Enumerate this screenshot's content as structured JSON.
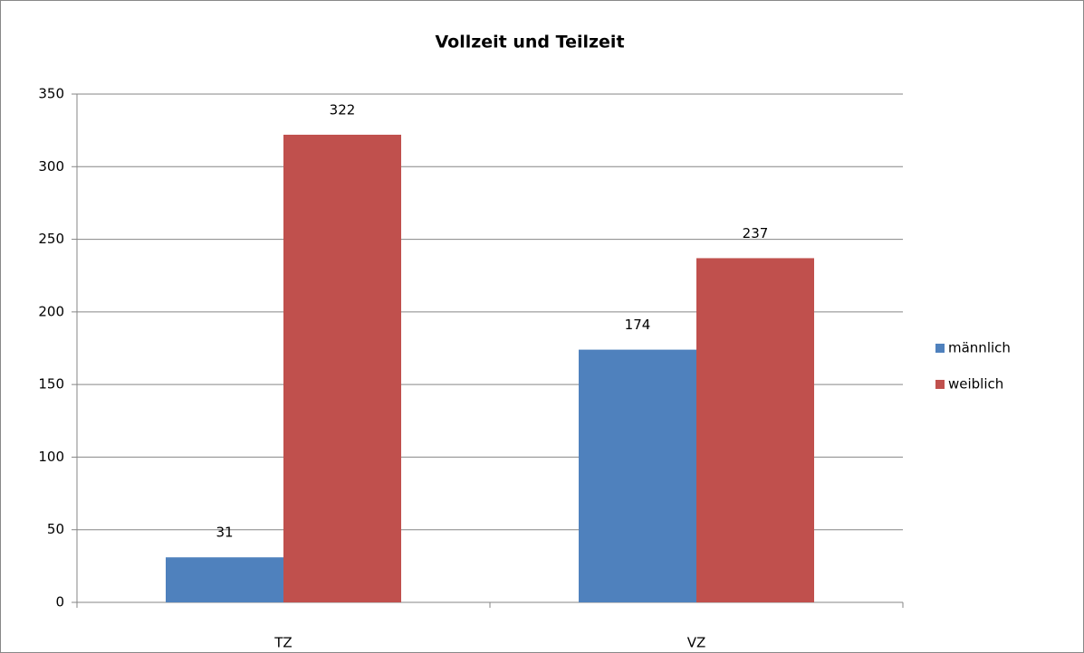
{
  "chart_data": {
    "type": "bar",
    "title": "Vollzeit und Teilzeit",
    "categories": [
      "TZ",
      "VZ"
    ],
    "series": [
      {
        "name": "männlich",
        "color": "#4f81bd",
        "values": [
          31,
          174
        ]
      },
      {
        "name": "weiblich",
        "color": "#c0504d",
        "values": [
          322,
          237
        ]
      }
    ],
    "ylim": [
      0,
      350
    ],
    "yticks": [
      0,
      50,
      100,
      150,
      200,
      250,
      300,
      350
    ],
    "grid": true,
    "legend": "right"
  }
}
